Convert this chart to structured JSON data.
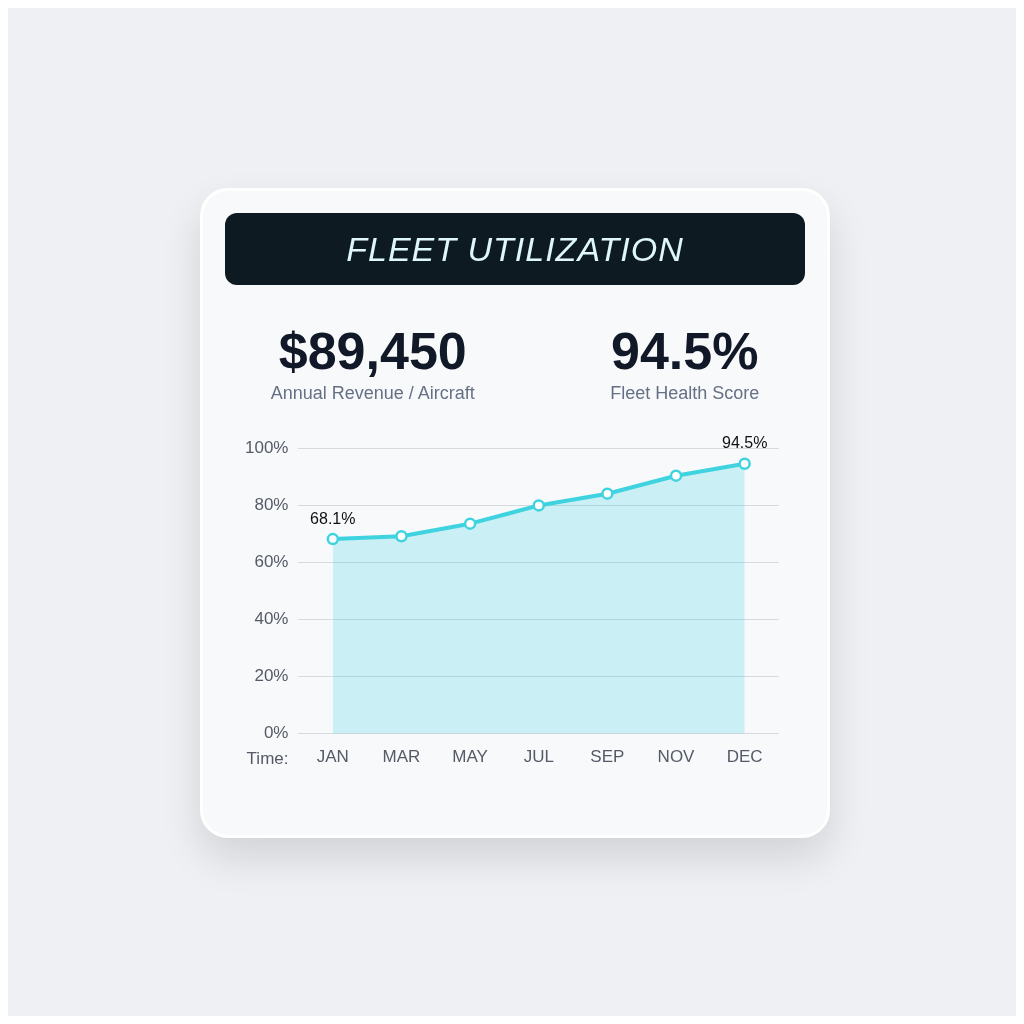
{
  "chart_data": {
    "type": "area",
    "title": "FLEET UTILIZATION",
    "annotations": [
      "$89,450",
      "Annual Revenue / Aircraft",
      "94.5%",
      "Fleet Health Score"
    ],
    "xlabel": "Time:",
    "categories": [
      "JAN",
      "MAR",
      "MAY",
      "JUL",
      "SEP",
      "NOV",
      "DEC"
    ],
    "series": [
      {
        "color": "#3fd3e0",
        "values": [
          68.1,
          69.1,
          73.5,
          79.9,
          84.0,
          90.3,
          94.5
        ],
        "value_labels": [
          "68.1%",
          null,
          null,
          null,
          null,
          null,
          "94.5%"
        ]
      }
    ],
    "ylim": [
      0,
      100
    ],
    "yticks": [
      {
        "value": 0,
        "label": "0%"
      },
      {
        "value": 20,
        "label": "20%"
      },
      {
        "value": 40,
        "label": "40%"
      },
      {
        "value": 60,
        "label": "60%"
      },
      {
        "value": 80,
        "label": "80%"
      },
      {
        "value": 100,
        "label": "100%"
      }
    ],
    "grid": "y",
    "legend": false,
    "marker": "circle",
    "line_style": "solid"
  }
}
